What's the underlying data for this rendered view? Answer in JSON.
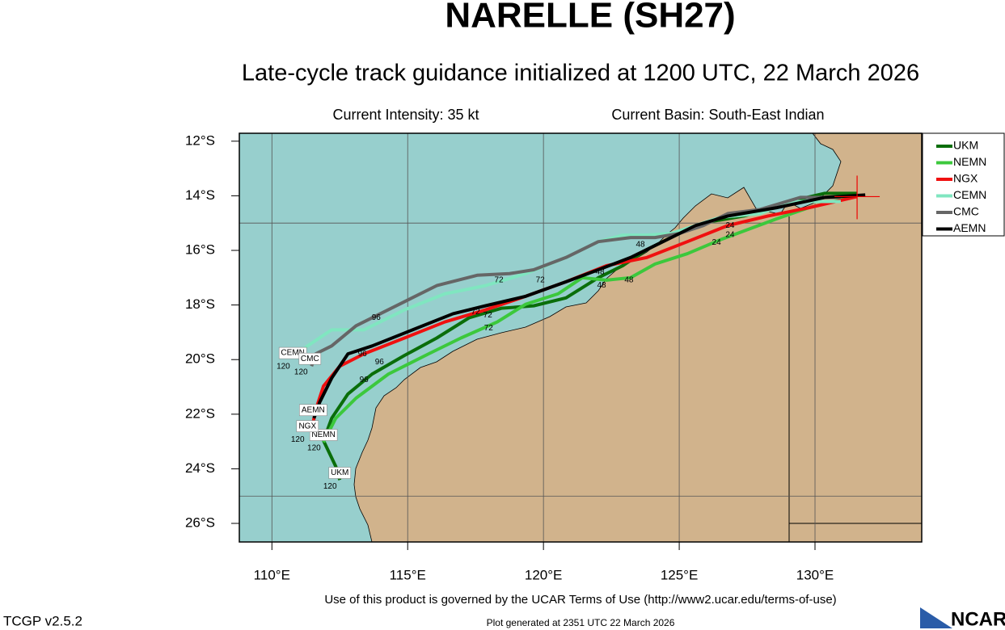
{
  "title": "NARELLE (SH27)",
  "subtitle": "Late-cycle track guidance initialized at 1200 UTC, 22 March 2026",
  "intensity": "Current Intensity: 35 kt",
  "basin": "Current Basin: South-East Indian",
  "footer_terms": "Use of this product is governed by the UCAR Terms of Use (http://www2.ucar.edu/terms-of-use)",
  "version": "TCGP v2.5.2",
  "generated": "Plot generated at 2351 UTC   22 March 2026",
  "logo": "NCAR",
  "chart_data": {
    "type": "line",
    "xlim": [
      108.8,
      133.93
    ],
    "ylim": [
      -26.68,
      -11.71
    ],
    "xticks": [
      {
        "value": 110,
        "label": "110°E"
      },
      {
        "value": 115,
        "label": "115°E"
      },
      {
        "value": 120,
        "label": "120°E"
      },
      {
        "value": 125,
        "label": "125°E"
      },
      {
        "value": 130,
        "label": "130°E"
      }
    ],
    "yticks": [
      {
        "value": -12,
        "label": "12°S"
      },
      {
        "value": -14,
        "label": "14°S"
      },
      {
        "value": -16,
        "label": "16°S"
      },
      {
        "value": -18,
        "label": "18°S"
      },
      {
        "value": -20,
        "label": "20°S"
      },
      {
        "value": -22,
        "label": "22°S"
      },
      {
        "value": -24,
        "label": "24°S"
      },
      {
        "value": -26,
        "label": "26°S"
      }
    ],
    "grid_lon": [
      110,
      115,
      120,
      125,
      130
    ],
    "grid_lat": [
      -15,
      -25
    ],
    "current_position": {
      "x": 131.55,
      "y": -14.03
    },
    "legend": "right",
    "series": [
      {
        "name": "UKM",
        "color": "#0a6e0a",
        "x": [
          131.55,
          130.36,
          129.32,
          128.27,
          127.38,
          126.19,
          125.0,
          123.81,
          122.92,
          122.02,
          120.83,
          119.64,
          118.45,
          117.26,
          116.07,
          114.88,
          113.69,
          112.8,
          112.2,
          111.9,
          112.35,
          112.5
        ],
        "values": [
          -13.91,
          -13.91,
          -14.15,
          -14.5,
          -14.74,
          -14.94,
          -15.38,
          -15.97,
          -16.56,
          -17.0,
          -17.74,
          -18.03,
          -18.12,
          -18.47,
          -19.21,
          -19.85,
          -20.53,
          -21.26,
          -22.15,
          -22.97,
          -23.91,
          -24.41
        ]
      },
      {
        "name": "NEMN",
        "color": "#3cc83c",
        "x": [
          131.55,
          129.76,
          128.57,
          127.68,
          126.49,
          125.3,
          124.11,
          123.21,
          122.32,
          121.43,
          120.54,
          119.35,
          118.3,
          116.96,
          115.77,
          114.29,
          113.1,
          112.35,
          111.9
        ],
        "values": [
          -14.0,
          -14.44,
          -14.85,
          -15.18,
          -15.62,
          -16.12,
          -16.5,
          -17.0,
          -17.09,
          -17.0,
          -17.59,
          -17.97,
          -18.62,
          -19.21,
          -19.79,
          -20.53,
          -21.41,
          -22.15,
          -23.03
        ]
      },
      {
        "name": "NGX",
        "color": "#f01010",
        "x": [
          131.55,
          129.76,
          128.27,
          126.79,
          125.3,
          123.81,
          122.32,
          120.83,
          119.35,
          117.86,
          116.37,
          114.88,
          113.39,
          112.5,
          111.9,
          111.61,
          111.46
        ],
        "values": [
          -14.03,
          -14.44,
          -14.74,
          -15.09,
          -15.68,
          -16.26,
          -16.56,
          -17.15,
          -17.68,
          -18.18,
          -18.62,
          -19.21,
          -19.79,
          -20.24,
          -20.97,
          -21.85,
          -22.59
        ]
      },
      {
        "name": "CEMN",
        "color": "#80e6c0",
        "x": [
          130.95,
          129.17,
          127.98,
          126.49,
          125.6,
          124.7,
          123.81,
          122.92,
          122.02,
          120.83,
          119.35,
          117.86,
          116.37,
          114.88,
          113.39,
          112.2,
          111.31,
          110.86
        ],
        "values": [
          -14.21,
          -14.21,
          -14.65,
          -14.79,
          -15.09,
          -15.38,
          -15.44,
          -15.44,
          -15.68,
          -16.26,
          -16.85,
          -17.29,
          -17.59,
          -18.18,
          -18.91,
          -18.91,
          -19.5,
          -19.88
        ]
      },
      {
        "name": "CMC",
        "color": "#666666",
        "x": [
          130.95,
          129.46,
          127.98,
          126.79,
          125.89,
          125.0,
          124.11,
          123.21,
          122.02,
          120.83,
          119.64,
          118.75,
          117.56,
          116.07,
          114.88,
          113.99,
          113.1,
          112.2,
          111.61,
          111.46
        ],
        "values": [
          -14.06,
          -14.06,
          -14.5,
          -14.65,
          -15.09,
          -15.38,
          -15.53,
          -15.53,
          -15.68,
          -16.26,
          -16.71,
          -16.85,
          -16.91,
          -17.29,
          -17.88,
          -18.32,
          -18.76,
          -19.5,
          -19.79,
          -20.24
        ]
      },
      {
        "name": "AEMN",
        "color": "#000000",
        "x": [
          131.85,
          130.36,
          128.57,
          126.79,
          125.6,
          124.4,
          123.21,
          122.02,
          120.83,
          119.35,
          117.86,
          116.67,
          115.18,
          113.69,
          112.8,
          112.2,
          111.76,
          111.55
        ],
        "values": [
          -13.97,
          -14.06,
          -14.44,
          -14.74,
          -15.09,
          -15.68,
          -16.26,
          -16.71,
          -17.15,
          -17.68,
          -18.03,
          -18.32,
          -18.91,
          -19.5,
          -19.79,
          -20.68,
          -21.56,
          -22.15
        ]
      }
    ],
    "end_labels": [
      {
        "text": "UKM",
        "x": 112.5,
        "y": -24.15
      },
      {
        "text": "NEMN",
        "x": 111.9,
        "y": -22.76
      },
      {
        "text": "NGX",
        "x": 111.31,
        "y": -22.44
      },
      {
        "text": "AEMN",
        "x": 111.52,
        "y": -21.85
      },
      {
        "text": "CEMN",
        "x": 110.77,
        "y": -19.76
      },
      {
        "text": "CMC",
        "x": 111.4,
        "y": -19.97
      }
    ],
    "point_labels": [
      {
        "text": "120",
        "x": 112.14,
        "y": -24.65
      },
      {
        "text": "120",
        "x": 111.55,
        "y": -23.24
      },
      {
        "text": "120",
        "x": 110.95,
        "y": -22.94
      },
      {
        "text": "120",
        "x": 111.16,
        "y": -22.35
      },
      {
        "text": "120",
        "x": 110.42,
        "y": -20.26
      },
      {
        "text": "120",
        "x": 111.07,
        "y": -20.47
      },
      {
        "text": "96",
        "x": 113.84,
        "y": -18.47
      },
      {
        "text": "96",
        "x": 113.33,
        "y": -19.79
      },
      {
        "text": "96",
        "x": 113.96,
        "y": -20.09
      },
      {
        "text": "96",
        "x": 113.39,
        "y": -20.74
      },
      {
        "text": "72",
        "x": 118.36,
        "y": -17.09
      },
      {
        "text": "72",
        "x": 119.88,
        "y": -17.09
      },
      {
        "text": "72",
        "x": 117.5,
        "y": -18.26
      },
      {
        "text": "72",
        "x": 117.95,
        "y": -18.38
      },
      {
        "text": "72",
        "x": 117.98,
        "y": -18.85
      },
      {
        "text": "48",
        "x": 122.14,
        "y": -17.29
      },
      {
        "text": "48",
        "x": 123.15,
        "y": -17.09
      },
      {
        "text": "48",
        "x": 122.08,
        "y": -16.79
      },
      {
        "text": "48",
        "x": 123.57,
        "y": -15.79
      },
      {
        "text": "24",
        "x": 126.37,
        "y": -15.71
      },
      {
        "text": "24",
        "x": 126.87,
        "y": -15.44
      },
      {
        "text": "24",
        "x": 126.87,
        "y": -15.09
      }
    ]
  }
}
